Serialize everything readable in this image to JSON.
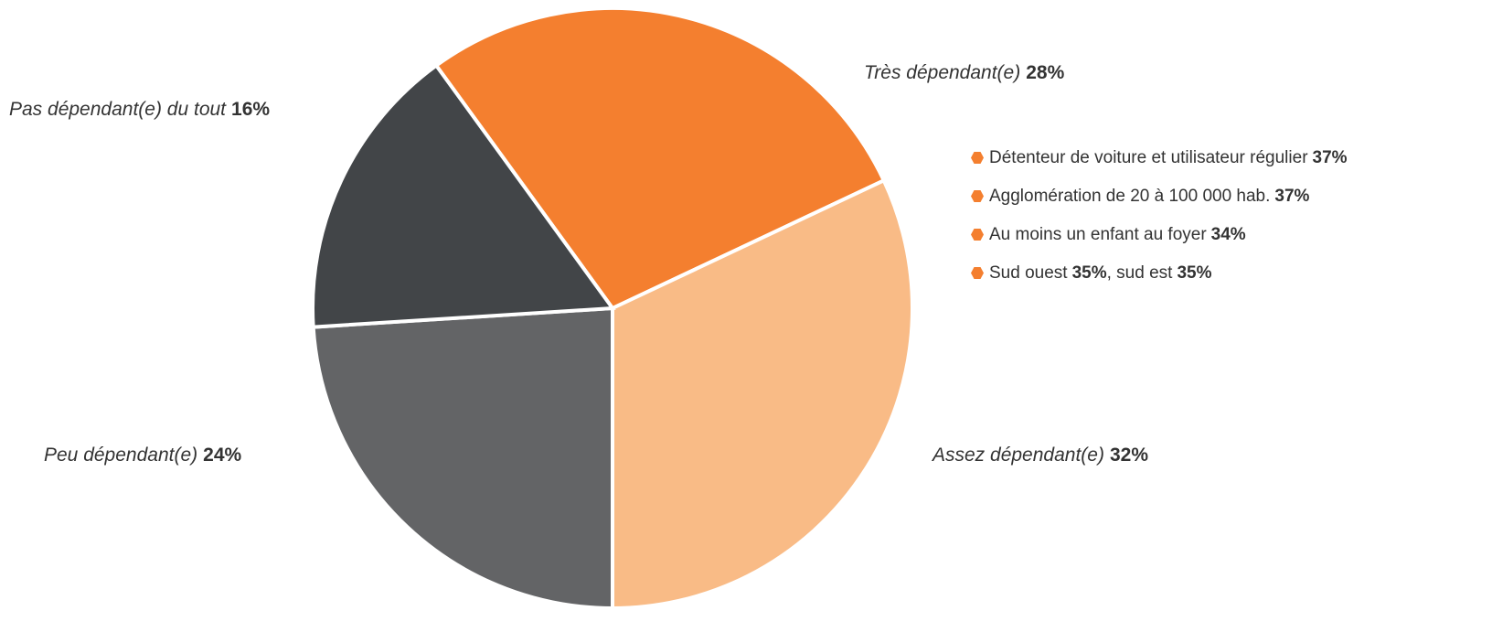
{
  "chart_data": {
    "type": "pie",
    "categories": [
      "Très dépendant(e)",
      "Assez dépendant(e)",
      "Peu dépendant(e)",
      "Pas dépendant(e) du tout"
    ],
    "values": [
      28,
      32,
      24,
      16
    ],
    "value_labels": [
      "28%",
      "32%",
      "24%",
      "16%"
    ],
    "colors": [
      "#f47f2f",
      "#f9bb86",
      "#636466",
      "#424548"
    ]
  },
  "notes": [
    [
      "Détenteur de voiture et utilisateur régulier",
      "37%"
    ],
    [
      "Agglomération de 20 à 100 000 hab.",
      "37%"
    ],
    [
      "Au moins un enfant au foyer",
      "34%"
    ],
    [
      "Sud ouest",
      "35%",
      ", sud est",
      "35%"
    ]
  ]
}
